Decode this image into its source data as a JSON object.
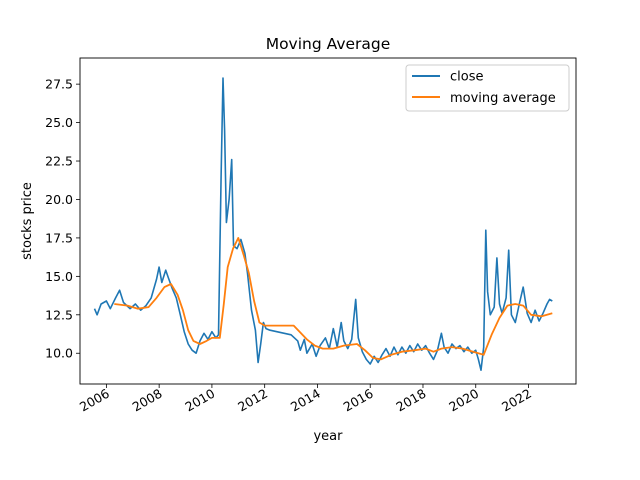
{
  "chart_data": {
    "type": "line",
    "title": "Moving Average",
    "xlabel": "year",
    "ylabel": "stocks price",
    "xlim": [
      2005.0,
      2023.8
    ],
    "ylim": [
      8.0,
      29.2
    ],
    "x_ticks": [
      2006,
      2008,
      2010,
      2012,
      2014,
      2016,
      2018,
      2020,
      2022
    ],
    "y_ticks": [
      10.0,
      12.5,
      15.0,
      17.5,
      20.0,
      22.5,
      25.0,
      27.5
    ],
    "y_tick_labels": [
      "10.0",
      "12.5",
      "15.0",
      "17.5",
      "20.0",
      "22.5",
      "25.0",
      "27.5"
    ],
    "grid": false,
    "legend_position": "top-right",
    "series": [
      {
        "name": "close",
        "color": "#1f77b4",
        "points": [
          [
            2005.55,
            12.9
          ],
          [
            2005.65,
            12.5
          ],
          [
            2005.8,
            13.2
          ],
          [
            2006.0,
            13.4
          ],
          [
            2006.15,
            12.9
          ],
          [
            2006.35,
            13.6
          ],
          [
            2006.5,
            14.1
          ],
          [
            2006.65,
            13.3
          ],
          [
            2006.9,
            12.9
          ],
          [
            2007.1,
            13.2
          ],
          [
            2007.3,
            12.8
          ],
          [
            2007.5,
            13.1
          ],
          [
            2007.7,
            13.6
          ],
          [
            2007.9,
            14.8
          ],
          [
            2008.0,
            15.6
          ],
          [
            2008.1,
            14.6
          ],
          [
            2008.25,
            15.4
          ],
          [
            2008.35,
            14.9
          ],
          [
            2008.5,
            14.2
          ],
          [
            2008.65,
            13.6
          ],
          [
            2008.8,
            12.5
          ],
          [
            2008.95,
            11.4
          ],
          [
            2009.1,
            10.6
          ],
          [
            2009.25,
            10.2
          ],
          [
            2009.4,
            10.0
          ],
          [
            2009.55,
            10.8
          ],
          [
            2009.7,
            11.3
          ],
          [
            2009.85,
            10.9
          ],
          [
            2010.0,
            11.4
          ],
          [
            2010.15,
            11.0
          ],
          [
            2010.25,
            11.2
          ],
          [
            2010.35,
            21.5
          ],
          [
            2010.42,
            27.9
          ],
          [
            2010.48,
            24.5
          ],
          [
            2010.55,
            18.5
          ],
          [
            2010.65,
            20.0
          ],
          [
            2010.75,
            22.6
          ],
          [
            2010.82,
            17.0
          ],
          [
            2010.95,
            16.8
          ],
          [
            2011.1,
            17.4
          ],
          [
            2011.25,
            16.5
          ],
          [
            2011.35,
            15.2
          ],
          [
            2011.5,
            12.8
          ],
          [
            2011.65,
            11.5
          ],
          [
            2011.75,
            9.4
          ],
          [
            2011.85,
            10.6
          ],
          [
            2011.95,
            12.0
          ],
          [
            2012.05,
            11.6
          ],
          [
            2012.2,
            11.5
          ],
          [
            2013.0,
            11.2
          ],
          [
            2013.25,
            10.8
          ],
          [
            2013.35,
            10.2
          ],
          [
            2013.5,
            10.9
          ],
          [
            2013.6,
            10.0
          ],
          [
            2013.8,
            10.6
          ],
          [
            2013.95,
            9.8
          ],
          [
            2014.1,
            10.5
          ],
          [
            2014.3,
            11.0
          ],
          [
            2014.45,
            10.3
          ],
          [
            2014.6,
            11.6
          ],
          [
            2014.75,
            10.4
          ],
          [
            2014.9,
            12.0
          ],
          [
            2015.0,
            10.8
          ],
          [
            2015.15,
            10.3
          ],
          [
            2015.3,
            10.9
          ],
          [
            2015.45,
            13.5
          ],
          [
            2015.55,
            11.0
          ],
          [
            2015.7,
            10.1
          ],
          [
            2015.85,
            9.6
          ],
          [
            2016.0,
            9.3
          ],
          [
            2016.15,
            9.8
          ],
          [
            2016.3,
            9.4
          ],
          [
            2016.45,
            9.9
          ],
          [
            2016.6,
            10.3
          ],
          [
            2016.75,
            9.8
          ],
          [
            2016.9,
            10.4
          ],
          [
            2017.05,
            9.9
          ],
          [
            2017.2,
            10.4
          ],
          [
            2017.35,
            10.0
          ],
          [
            2017.5,
            10.5
          ],
          [
            2017.65,
            10.1
          ],
          [
            2017.8,
            10.6
          ],
          [
            2017.95,
            10.2
          ],
          [
            2018.1,
            10.5
          ],
          [
            2018.25,
            10.0
          ],
          [
            2018.4,
            9.6
          ],
          [
            2018.55,
            10.2
          ],
          [
            2018.7,
            11.3
          ],
          [
            2018.8,
            10.4
          ],
          [
            2018.95,
            10.0
          ],
          [
            2019.1,
            10.6
          ],
          [
            2019.25,
            10.3
          ],
          [
            2019.4,
            10.5
          ],
          [
            2019.55,
            10.1
          ],
          [
            2019.7,
            10.4
          ],
          [
            2019.85,
            10.0
          ],
          [
            2020.0,
            10.2
          ],
          [
            2020.1,
            9.6
          ],
          [
            2020.2,
            8.9
          ],
          [
            2020.3,
            10.4
          ],
          [
            2020.38,
            18.0
          ],
          [
            2020.45,
            14.0
          ],
          [
            2020.55,
            12.5
          ],
          [
            2020.7,
            13.0
          ],
          [
            2020.8,
            16.2
          ],
          [
            2020.9,
            13.2
          ],
          [
            2021.0,
            12.6
          ],
          [
            2021.15,
            13.6
          ],
          [
            2021.25,
            16.7
          ],
          [
            2021.35,
            12.5
          ],
          [
            2021.5,
            12.0
          ],
          [
            2021.65,
            13.2
          ],
          [
            2021.8,
            14.3
          ],
          [
            2021.95,
            12.6
          ],
          [
            2022.1,
            12.0
          ],
          [
            2022.25,
            12.8
          ],
          [
            2022.4,
            12.1
          ],
          [
            2022.55,
            12.6
          ],
          [
            2022.7,
            13.2
          ],
          [
            2022.8,
            13.5
          ],
          [
            2022.9,
            13.4
          ]
        ]
      },
      {
        "name": "moving average",
        "color": "#ff7f0e",
        "points": [
          [
            2006.3,
            13.2
          ],
          [
            2006.8,
            13.1
          ],
          [
            2007.2,
            12.9
          ],
          [
            2007.6,
            13.0
          ],
          [
            2007.9,
            13.6
          ],
          [
            2008.2,
            14.3
          ],
          [
            2008.45,
            14.5
          ],
          [
            2008.7,
            13.8
          ],
          [
            2008.9,
            12.8
          ],
          [
            2009.1,
            11.5
          ],
          [
            2009.3,
            10.8
          ],
          [
            2009.55,
            10.6
          ],
          [
            2009.8,
            10.8
          ],
          [
            2010.0,
            11.0
          ],
          [
            2010.3,
            11.0
          ],
          [
            2010.45,
            13.2
          ],
          [
            2010.6,
            15.6
          ],
          [
            2010.8,
            16.8
          ],
          [
            2011.0,
            17.5
          ],
          [
            2011.2,
            16.4
          ],
          [
            2011.4,
            15.2
          ],
          [
            2011.6,
            13.4
          ],
          [
            2011.8,
            12.0
          ],
          [
            2012.0,
            11.8
          ],
          [
            2012.5,
            11.8
          ],
          [
            2013.1,
            11.8
          ],
          [
            2013.6,
            10.9
          ],
          [
            2013.9,
            10.5
          ],
          [
            2014.2,
            10.3
          ],
          [
            2014.6,
            10.3
          ],
          [
            2015.0,
            10.5
          ],
          [
            2015.5,
            10.6
          ],
          [
            2015.8,
            10.2
          ],
          [
            2016.1,
            9.7
          ],
          [
            2016.4,
            9.6
          ],
          [
            2016.8,
            9.9
          ],
          [
            2017.2,
            10.1
          ],
          [
            2017.7,
            10.2
          ],
          [
            2018.1,
            10.3
          ],
          [
            2018.4,
            10.1
          ],
          [
            2018.7,
            10.3
          ],
          [
            2019.1,
            10.4
          ],
          [
            2019.5,
            10.3
          ],
          [
            2019.9,
            10.1
          ],
          [
            2020.3,
            9.9
          ],
          [
            2020.6,
            11.2
          ],
          [
            2020.9,
            12.3
          ],
          [
            2021.2,
            13.1
          ],
          [
            2021.5,
            13.2
          ],
          [
            2021.8,
            13.1
          ],
          [
            2022.1,
            12.5
          ],
          [
            2022.5,
            12.4
          ],
          [
            2022.9,
            12.6
          ]
        ]
      }
    ]
  }
}
